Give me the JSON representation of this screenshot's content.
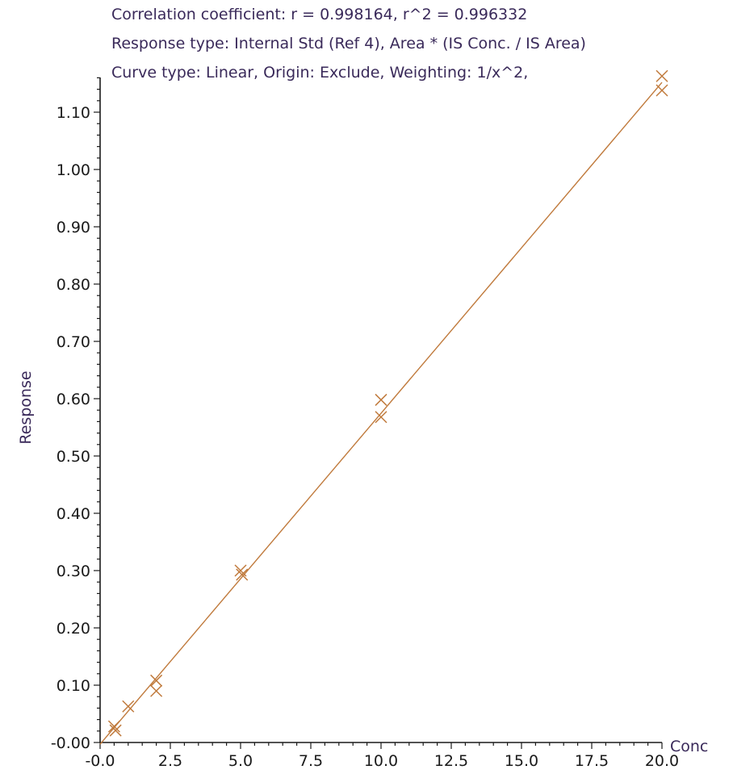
{
  "header": {
    "line1": "Correlation coefficient: r = 0.998164, r^2 = 0.996332",
    "line2": "Response type: Internal Std (Ref 4), Area * (IS Conc. / IS Area)",
    "line3": "Curve type: Linear, Origin: Exclude, Weighting: 1/x^2,"
  },
  "colors": {
    "series": "#c07a3c",
    "axis": "#1a1a1a",
    "text": "#3a2a5a"
  },
  "chart_data": {
    "type": "scatter",
    "xlabel": "Conc",
    "ylabel": "Response",
    "xlim": [
      0,
      20
    ],
    "ylim": [
      0,
      1.16
    ],
    "x_ticks": [
      {
        "value": 0,
        "label": "-0.0"
      },
      {
        "value": 2.5,
        "label": "2.5"
      },
      {
        "value": 5,
        "label": "5.0"
      },
      {
        "value": 7.5,
        "label": "7.5"
      },
      {
        "value": 10,
        "label": "10.0"
      },
      {
        "value": 12.5,
        "label": "12.5"
      },
      {
        "value": 15,
        "label": "15.0"
      },
      {
        "value": 17.5,
        "label": "17.5"
      },
      {
        "value": 20,
        "label": "20.0"
      }
    ],
    "y_ticks": [
      {
        "value": 0,
        "label": "-0.00"
      },
      {
        "value": 0.1,
        "label": "0.10"
      },
      {
        "value": 0.2,
        "label": "0.20"
      },
      {
        "value": 0.3,
        "label": "0.30"
      },
      {
        "value": 0.4,
        "label": "0.40"
      },
      {
        "value": 0.5,
        "label": "0.50"
      },
      {
        "value": 0.6,
        "label": "0.60"
      },
      {
        "value": 0.7,
        "label": "0.70"
      },
      {
        "value": 0.8,
        "label": "0.80"
      },
      {
        "value": 0.9,
        "label": "0.90"
      },
      {
        "value": 1.0,
        "label": "1.00"
      },
      {
        "value": 1.1,
        "label": "1.10"
      }
    ],
    "points": [
      {
        "x": 0.5,
        "y": 0.028
      },
      {
        "x": 0.55,
        "y": 0.021
      },
      {
        "x": 1.0,
        "y": 0.063
      },
      {
        "x": 2.0,
        "y": 0.108
      },
      {
        "x": 2.0,
        "y": 0.09
      },
      {
        "x": 5.0,
        "y": 0.3
      },
      {
        "x": 5.05,
        "y": 0.293
      },
      {
        "x": 10.0,
        "y": 0.598
      },
      {
        "x": 10.0,
        "y": 0.568
      },
      {
        "x": 20.0,
        "y": 1.163
      },
      {
        "x": 20.0,
        "y": 1.138
      }
    ],
    "fit_line": {
      "x_start": 0,
      "y_start": -0.003,
      "x_end": 20,
      "y_end": 1.152
    },
    "grid": false
  }
}
